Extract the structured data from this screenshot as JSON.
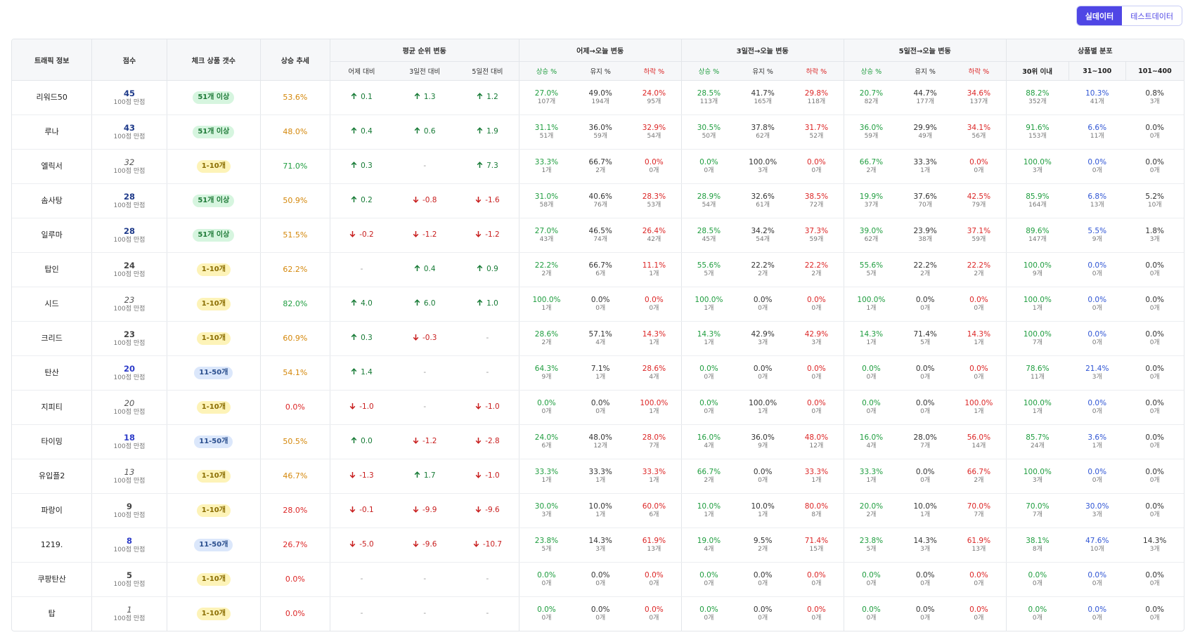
{
  "toolbar": {
    "live_label": "실데이터",
    "test_label": "테스트데이터"
  },
  "headers": {
    "traffic": "트래픽 정보",
    "score": "점수",
    "check_count": "체크 상품 갯수",
    "trend": "상승 추세",
    "avg_rank": "평균 순위 변동",
    "yday": "어제→오늘 변동",
    "d3": "3일전→오늘 변동",
    "d5": "5일전→오늘 변동",
    "dist": "상품별 분포",
    "sub_avg": [
      "어제 대비",
      "3일전 대비",
      "5일전 대비"
    ],
    "sub_change": [
      "상승 %",
      "유지 %",
      "하락 %"
    ],
    "sub_dist": [
      "30위 이내",
      "31~100",
      "101~400"
    ]
  },
  "score_suffix": "100점 만점",
  "rows": [
    {
      "name": "리워드50",
      "score": "45",
      "sc": "c1",
      "badge": "51개 이상",
      "bc": "green",
      "trend": "53.6%",
      "tc": "orange",
      "avg": [
        [
          "up",
          "0.1"
        ],
        [
          "up",
          "1.3"
        ],
        [
          "up",
          "1.2"
        ]
      ],
      "y": [
        [
          "27.0%",
          "107개"
        ],
        [
          "49.0%",
          "194개"
        ],
        [
          "24.0%",
          "95개"
        ]
      ],
      "d3": [
        [
          "28.5%",
          "113개"
        ],
        [
          "41.7%",
          "165개"
        ],
        [
          "29.8%",
          "118개"
        ]
      ],
      "d5": [
        [
          "20.7%",
          "82개"
        ],
        [
          "44.7%",
          "177개"
        ],
        [
          "34.6%",
          "137개"
        ]
      ],
      "dist": [
        [
          "88.2%",
          "352개"
        ],
        [
          "10.3%",
          "41개"
        ],
        [
          "0.8%",
          "3개"
        ]
      ]
    },
    {
      "name": "루나",
      "score": "43",
      "sc": "c1",
      "badge": "51개 이상",
      "bc": "green",
      "trend": "48.0%",
      "tc": "orange",
      "avg": [
        [
          "up",
          "0.4"
        ],
        [
          "up",
          "0.6"
        ],
        [
          "up",
          "1.9"
        ]
      ],
      "y": [
        [
          "31.1%",
          "51개"
        ],
        [
          "36.0%",
          "59개"
        ],
        [
          "32.9%",
          "54개"
        ]
      ],
      "d3": [
        [
          "30.5%",
          "50개"
        ],
        [
          "37.8%",
          "62개"
        ],
        [
          "31.7%",
          "52개"
        ]
      ],
      "d5": [
        [
          "36.0%",
          "59개"
        ],
        [
          "29.9%",
          "49개"
        ],
        [
          "34.1%",
          "56개"
        ]
      ],
      "dist": [
        [
          "91.6%",
          "153개"
        ],
        [
          "6.6%",
          "11개"
        ],
        [
          "0.0%",
          "0개"
        ]
      ]
    },
    {
      "name": "엘릭서",
      "score": "32",
      "sc": "ital",
      "badge": "1-10개",
      "bc": "yellow",
      "trend": "71.0%",
      "tc": "green",
      "avg": [
        [
          "up",
          "0.3"
        ],
        [
          "dash",
          "-"
        ],
        [
          "up",
          "7.3"
        ]
      ],
      "y": [
        [
          "33.3%",
          "1개"
        ],
        [
          "66.7%",
          "2개"
        ],
        [
          "0.0%",
          "0개"
        ]
      ],
      "d3": [
        [
          "0.0%",
          "0개"
        ],
        [
          "100.0%",
          "3개"
        ],
        [
          "0.0%",
          "0개"
        ]
      ],
      "d5": [
        [
          "66.7%",
          "2개"
        ],
        [
          "33.3%",
          "1개"
        ],
        [
          "0.0%",
          "0개"
        ]
      ],
      "dist": [
        [
          "100.0%",
          "3개"
        ],
        [
          "0.0%",
          "0개"
        ],
        [
          "0.0%",
          "0개"
        ]
      ]
    },
    {
      "name": "솜사탕",
      "score": "28",
      "sc": "c1",
      "badge": "51개 이상",
      "bc": "green",
      "trend": "50.9%",
      "tc": "orange",
      "avg": [
        [
          "up",
          "0.2"
        ],
        [
          "down",
          "-0.8"
        ],
        [
          "down",
          "-1.6"
        ]
      ],
      "y": [
        [
          "31.0%",
          "58개"
        ],
        [
          "40.6%",
          "76개"
        ],
        [
          "28.3%",
          "53개"
        ]
      ],
      "d3": [
        [
          "28.9%",
          "54개"
        ],
        [
          "32.6%",
          "61개"
        ],
        [
          "38.5%",
          "72개"
        ]
      ],
      "d5": [
        [
          "19.9%",
          "37개"
        ],
        [
          "37.6%",
          "70개"
        ],
        [
          "42.5%",
          "79개"
        ]
      ],
      "dist": [
        [
          "85.9%",
          "164개"
        ],
        [
          "6.8%",
          "13개"
        ],
        [
          "5.2%",
          "10개"
        ]
      ]
    },
    {
      "name": "일루마",
      "score": "28",
      "sc": "c1",
      "badge": "51개 이상",
      "bc": "green",
      "trend": "51.5%",
      "tc": "orange",
      "avg": [
        [
          "down",
          "-0.2"
        ],
        [
          "down",
          "-1.2"
        ],
        [
          "down",
          "-1.2"
        ]
      ],
      "y": [
        [
          "27.0%",
          "43개"
        ],
        [
          "46.5%",
          "74개"
        ],
        [
          "26.4%",
          "42개"
        ]
      ],
      "d3": [
        [
          "28.5%",
          "45개"
        ],
        [
          "34.2%",
          "54개"
        ],
        [
          "37.3%",
          "59개"
        ]
      ],
      "d5": [
        [
          "39.0%",
          "62개"
        ],
        [
          "23.9%",
          "38개"
        ],
        [
          "37.1%",
          "59개"
        ]
      ],
      "dist": [
        [
          "89.6%",
          "147개"
        ],
        [
          "5.5%",
          "9개"
        ],
        [
          "1.8%",
          "3개"
        ]
      ]
    },
    {
      "name": "탑인",
      "score": "24",
      "sc": "c3",
      "badge": "1-10개",
      "bc": "yellow",
      "trend": "62.2%",
      "tc": "orange",
      "avg": [
        [
          "dash",
          "-"
        ],
        [
          "up",
          "0.4"
        ],
        [
          "up",
          "0.9"
        ]
      ],
      "y": [
        [
          "22.2%",
          "2개"
        ],
        [
          "66.7%",
          "6개"
        ],
        [
          "11.1%",
          "1개"
        ]
      ],
      "d3": [
        [
          "55.6%",
          "5개"
        ],
        [
          "22.2%",
          "2개"
        ],
        [
          "22.2%",
          "2개"
        ]
      ],
      "d5": [
        [
          "55.6%",
          "5개"
        ],
        [
          "22.2%",
          "2개"
        ],
        [
          "22.2%",
          "2개"
        ]
      ],
      "dist": [
        [
          "100.0%",
          "9개"
        ],
        [
          "0.0%",
          "0개"
        ],
        [
          "0.0%",
          "0개"
        ]
      ]
    },
    {
      "name": "시드",
      "score": "23",
      "sc": "ital",
      "badge": "1-10개",
      "bc": "yellow",
      "trend": "82.0%",
      "tc": "green",
      "avg": [
        [
          "up",
          "4.0"
        ],
        [
          "up",
          "6.0"
        ],
        [
          "up",
          "1.0"
        ]
      ],
      "y": [
        [
          "100.0%",
          "1개"
        ],
        [
          "0.0%",
          "0개"
        ],
        [
          "0.0%",
          "0개"
        ]
      ],
      "d3": [
        [
          "100.0%",
          "1개"
        ],
        [
          "0.0%",
          "0개"
        ],
        [
          "0.0%",
          "0개"
        ]
      ],
      "d5": [
        [
          "100.0%",
          "1개"
        ],
        [
          "0.0%",
          "0개"
        ],
        [
          "0.0%",
          "0개"
        ]
      ],
      "dist": [
        [
          "100.0%",
          "1개"
        ],
        [
          "0.0%",
          "0개"
        ],
        [
          "0.0%",
          "0개"
        ]
      ]
    },
    {
      "name": "크리드",
      "score": "23",
      "sc": "c3",
      "badge": "1-10개",
      "bc": "yellow",
      "trend": "60.9%",
      "tc": "orange",
      "avg": [
        [
          "up",
          "0.3"
        ],
        [
          "down",
          "-0.3"
        ],
        [
          "dash",
          "-"
        ]
      ],
      "y": [
        [
          "28.6%",
          "2개"
        ],
        [
          "57.1%",
          "4개"
        ],
        [
          "14.3%",
          "1개"
        ]
      ],
      "d3": [
        [
          "14.3%",
          "1개"
        ],
        [
          "42.9%",
          "3개"
        ],
        [
          "42.9%",
          "3개"
        ]
      ],
      "d5": [
        [
          "14.3%",
          "1개"
        ],
        [
          "71.4%",
          "5개"
        ],
        [
          "14.3%",
          "1개"
        ]
      ],
      "dist": [
        [
          "100.0%",
          "7개"
        ],
        [
          "0.0%",
          "0개"
        ],
        [
          "0.0%",
          "0개"
        ]
      ]
    },
    {
      "name": "탄산",
      "score": "20",
      "sc": "c2",
      "badge": "11-50개",
      "bc": "blue",
      "trend": "54.1%",
      "tc": "orange",
      "avg": [
        [
          "up",
          "1.4"
        ],
        [
          "dash",
          "-"
        ],
        [
          "dash",
          "-"
        ]
      ],
      "y": [
        [
          "64.3%",
          "9개"
        ],
        [
          "7.1%",
          "1개"
        ],
        [
          "28.6%",
          "4개"
        ]
      ],
      "d3": [
        [
          "0.0%",
          "0개"
        ],
        [
          "0.0%",
          "0개"
        ],
        [
          "0.0%",
          "0개"
        ]
      ],
      "d5": [
        [
          "0.0%",
          "0개"
        ],
        [
          "0.0%",
          "0개"
        ],
        [
          "0.0%",
          "0개"
        ]
      ],
      "dist": [
        [
          "78.6%",
          "11개"
        ],
        [
          "21.4%",
          "3개"
        ],
        [
          "0.0%",
          "0개"
        ]
      ]
    },
    {
      "name": "지피티",
      "score": "20",
      "sc": "ital",
      "badge": "1-10개",
      "bc": "yellow",
      "trend": "0.0%",
      "tc": "red",
      "avg": [
        [
          "down",
          "-1.0"
        ],
        [
          "dash",
          "-"
        ],
        [
          "down",
          "-1.0"
        ]
      ],
      "y": [
        [
          "0.0%",
          "0개"
        ],
        [
          "0.0%",
          "0개"
        ],
        [
          "100.0%",
          "1개"
        ]
      ],
      "d3": [
        [
          "0.0%",
          "0개"
        ],
        [
          "100.0%",
          "1개"
        ],
        [
          "0.0%",
          "0개"
        ]
      ],
      "d5": [
        [
          "0.0%",
          "0개"
        ],
        [
          "0.0%",
          "0개"
        ],
        [
          "100.0%",
          "1개"
        ]
      ],
      "dist": [
        [
          "100.0%",
          "1개"
        ],
        [
          "0.0%",
          "0개"
        ],
        [
          "0.0%",
          "0개"
        ]
      ]
    },
    {
      "name": "타이밍",
      "score": "18",
      "sc": "c2",
      "badge": "11-50개",
      "bc": "blue",
      "trend": "50.5%",
      "tc": "orange",
      "avg": [
        [
          "up",
          "0.0"
        ],
        [
          "down",
          "-1.2"
        ],
        [
          "down",
          "-2.8"
        ]
      ],
      "y": [
        [
          "24.0%",
          "6개"
        ],
        [
          "48.0%",
          "12개"
        ],
        [
          "28.0%",
          "7개"
        ]
      ],
      "d3": [
        [
          "16.0%",
          "4개"
        ],
        [
          "36.0%",
          "9개"
        ],
        [
          "48.0%",
          "12개"
        ]
      ],
      "d5": [
        [
          "16.0%",
          "4개"
        ],
        [
          "28.0%",
          "7개"
        ],
        [
          "56.0%",
          "14개"
        ]
      ],
      "dist": [
        [
          "85.7%",
          "24개"
        ],
        [
          "3.6%",
          "1개"
        ],
        [
          "0.0%",
          "0개"
        ]
      ]
    },
    {
      "name": "유입플2",
      "score": "13",
      "sc": "ital",
      "badge": "1-10개",
      "bc": "yellow",
      "trend": "46.7%",
      "tc": "orange",
      "avg": [
        [
          "down",
          "-1.3"
        ],
        [
          "up",
          "1.7"
        ],
        [
          "down",
          "-1.0"
        ]
      ],
      "y": [
        [
          "33.3%",
          "1개"
        ],
        [
          "33.3%",
          "1개"
        ],
        [
          "33.3%",
          "1개"
        ]
      ],
      "d3": [
        [
          "66.7%",
          "2개"
        ],
        [
          "0.0%",
          "0개"
        ],
        [
          "33.3%",
          "1개"
        ]
      ],
      "d5": [
        [
          "33.3%",
          "1개"
        ],
        [
          "0.0%",
          "0개"
        ],
        [
          "66.7%",
          "2개"
        ]
      ],
      "dist": [
        [
          "100.0%",
          "3개"
        ],
        [
          "0.0%",
          "0개"
        ],
        [
          "0.0%",
          "0개"
        ]
      ]
    },
    {
      "name": "파랑이",
      "score": "9",
      "sc": "c3",
      "badge": "1-10개",
      "bc": "yellow",
      "trend": "28.0%",
      "tc": "red",
      "avg": [
        [
          "down",
          "-0.1"
        ],
        [
          "down",
          "-9.9"
        ],
        [
          "down",
          "-9.6"
        ]
      ],
      "y": [
        [
          "30.0%",
          "3개"
        ],
        [
          "10.0%",
          "1개"
        ],
        [
          "60.0%",
          "6개"
        ]
      ],
      "d3": [
        [
          "10.0%",
          "1개"
        ],
        [
          "10.0%",
          "1개"
        ],
        [
          "80.0%",
          "8개"
        ]
      ],
      "d5": [
        [
          "20.0%",
          "2개"
        ],
        [
          "10.0%",
          "1개"
        ],
        [
          "70.0%",
          "7개"
        ]
      ],
      "dist": [
        [
          "70.0%",
          "7개"
        ],
        [
          "30.0%",
          "3개"
        ],
        [
          "0.0%",
          "0개"
        ]
      ]
    },
    {
      "name": "1219.",
      "score": "8",
      "sc": "c2",
      "badge": "11-50개",
      "bc": "blue",
      "trend": "26.7%",
      "tc": "red",
      "avg": [
        [
          "down",
          "-5.0"
        ],
        [
          "down",
          "-9.6"
        ],
        [
          "down",
          "-10.7"
        ]
      ],
      "y": [
        [
          "23.8%",
          "5개"
        ],
        [
          "14.3%",
          "3개"
        ],
        [
          "61.9%",
          "13개"
        ]
      ],
      "d3": [
        [
          "19.0%",
          "4개"
        ],
        [
          "9.5%",
          "2개"
        ],
        [
          "71.4%",
          "15개"
        ]
      ],
      "d5": [
        [
          "23.8%",
          "5개"
        ],
        [
          "14.3%",
          "3개"
        ],
        [
          "61.9%",
          "13개"
        ]
      ],
      "dist": [
        [
          "38.1%",
          "8개"
        ],
        [
          "47.6%",
          "10개"
        ],
        [
          "14.3%",
          "3개"
        ]
      ]
    },
    {
      "name": "쿠팡탄산",
      "score": "5",
      "sc": "c3",
      "badge": "1-10개",
      "bc": "yellow",
      "trend": "0.0%",
      "tc": "red",
      "avg": [
        [
          "dash",
          "-"
        ],
        [
          "dash",
          "-"
        ],
        [
          "dash",
          "-"
        ]
      ],
      "y": [
        [
          "0.0%",
          "0개"
        ],
        [
          "0.0%",
          "0개"
        ],
        [
          "0.0%",
          "0개"
        ]
      ],
      "d3": [
        [
          "0.0%",
          "0개"
        ],
        [
          "0.0%",
          "0개"
        ],
        [
          "0.0%",
          "0개"
        ]
      ],
      "d5": [
        [
          "0.0%",
          "0개"
        ],
        [
          "0.0%",
          "0개"
        ],
        [
          "0.0%",
          "0개"
        ]
      ],
      "dist": [
        [
          "0.0%",
          "0개"
        ],
        [
          "0.0%",
          "0개"
        ],
        [
          "0.0%",
          "0개"
        ]
      ]
    },
    {
      "name": "탑",
      "score": "1",
      "sc": "ital",
      "badge": "1-10개",
      "bc": "yellow",
      "trend": "0.0%",
      "tc": "red",
      "avg": [
        [
          "dash",
          "-"
        ],
        [
          "dash",
          "-"
        ],
        [
          "dash",
          "-"
        ]
      ],
      "y": [
        [
          "0.0%",
          "0개"
        ],
        [
          "0.0%",
          "0개"
        ],
        [
          "0.0%",
          "0개"
        ]
      ],
      "d3": [
        [
          "0.0%",
          "0개"
        ],
        [
          "0.0%",
          "0개"
        ],
        [
          "0.0%",
          "0개"
        ]
      ],
      "d5": [
        [
          "0.0%",
          "0개"
        ],
        [
          "0.0%",
          "0개"
        ],
        [
          "0.0%",
          "0개"
        ]
      ],
      "dist": [
        [
          "0.0%",
          "0개"
        ],
        [
          "0.0%",
          "0개"
        ],
        [
          "0.0%",
          "0개"
        ]
      ]
    }
  ]
}
